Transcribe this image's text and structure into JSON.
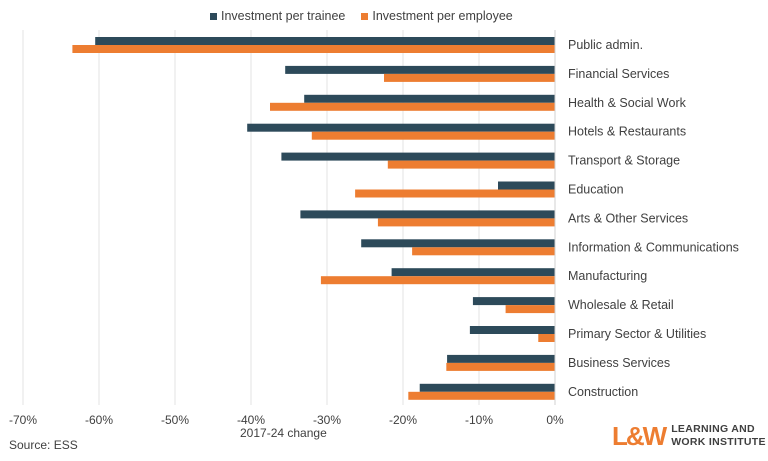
{
  "chart_data": {
    "type": "bar",
    "orientation": "horizontal",
    "categories": [
      "Public admin.",
      "Financial Services",
      "Health & Social Work",
      "Hotels & Restaurants",
      "Transport & Storage",
      "Education",
      "Arts & Other Services",
      "Information & Communications",
      "Manufacturing",
      "Wholesale & Retail",
      "Primary Sector & Utilities",
      "Business Services",
      "Construction"
    ],
    "series": [
      {
        "name": "Investment per trainee",
        "color": "#2D4A5A",
        "values": [
          -60.5,
          -35.5,
          -33,
          -40.5,
          -36,
          -7.5,
          -33.5,
          -25.5,
          -21.5,
          -10.8,
          -11.2,
          -14.2,
          -17.8
        ]
      },
      {
        "name": "Investment per employee",
        "color": "#ED7D31",
        "values": [
          -63.5,
          -22.5,
          -37.5,
          -32,
          -22,
          -26.3,
          -23.3,
          -18.8,
          -30.8,
          -6.5,
          -2.2,
          -14.3,
          -19.3
        ]
      }
    ],
    "xlim": [
      -70,
      0
    ],
    "xticks": [
      "-70%",
      "-60%",
      "-50%",
      "-40%",
      "-30%",
      "-20%",
      "-10%",
      "0%"
    ],
    "xlabel": "2017-24 change",
    "grid": true,
    "legend": "top"
  },
  "footer": {
    "source": "Source: ESS",
    "logo_mark": "L&W",
    "logo_line1": "LEARNING AND",
    "logo_line2": "WORK INSTITUTE"
  }
}
